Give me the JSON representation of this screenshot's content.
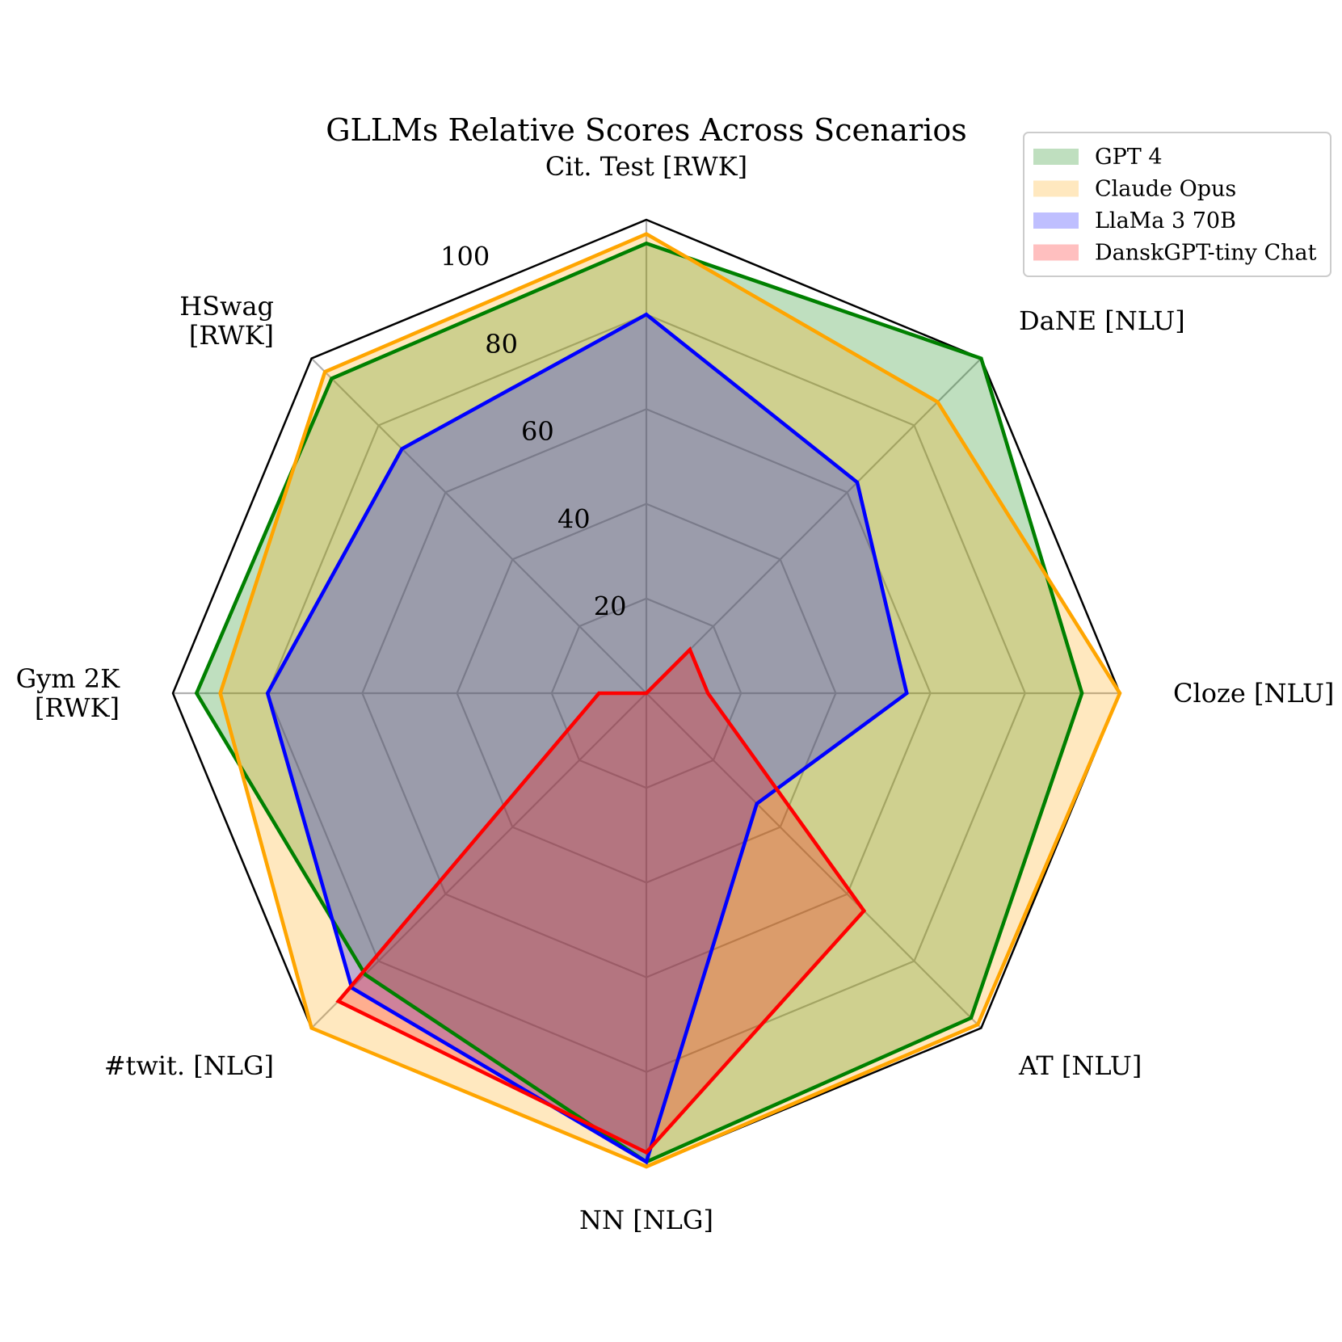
{
  "chart_data": {
    "type": "radar",
    "title": "GLLMs Relative Scores Across Scenarios",
    "axes": [
      "Cit. Test [RWK]",
      "DaNE [NLU]",
      "Cloze [NLU]",
      "AT [NLU]",
      "NN [NLG]",
      "#twit. [NLG]",
      "Gym 2K\n[RWK]",
      "HSwag\n[RWK]"
    ],
    "rlim": [
      0,
      100
    ],
    "rticks": [
      20,
      40,
      60,
      80,
      100
    ],
    "rtick_labels": [
      "20",
      "40",
      "60",
      "80",
      "100"
    ],
    "grid": true,
    "legend_position": "top-right",
    "series": [
      {
        "name": "GPT 4",
        "color": "#008000",
        "fill": "#008000",
        "values": [
          95,
          100,
          92,
          97,
          99,
          84,
          95,
          94
        ]
      },
      {
        "name": "Claude Opus",
        "color": "#FFA500",
        "fill": "#FFA500",
        "values": [
          97,
          87,
          100,
          99,
          100,
          100,
          90,
          96
        ]
      },
      {
        "name": "LlaMa 3 70B",
        "color": "#0000FF",
        "fill": "#0000FF",
        "values": [
          80,
          63,
          55,
          33,
          99,
          88,
          80,
          73
        ]
      },
      {
        "name": "DanskGPT-tiny Chat",
        "color": "#FF0000",
        "fill": "#FF0000",
        "values": [
          0,
          13,
          13,
          65,
          97,
          92,
          10,
          0
        ]
      }
    ]
  }
}
